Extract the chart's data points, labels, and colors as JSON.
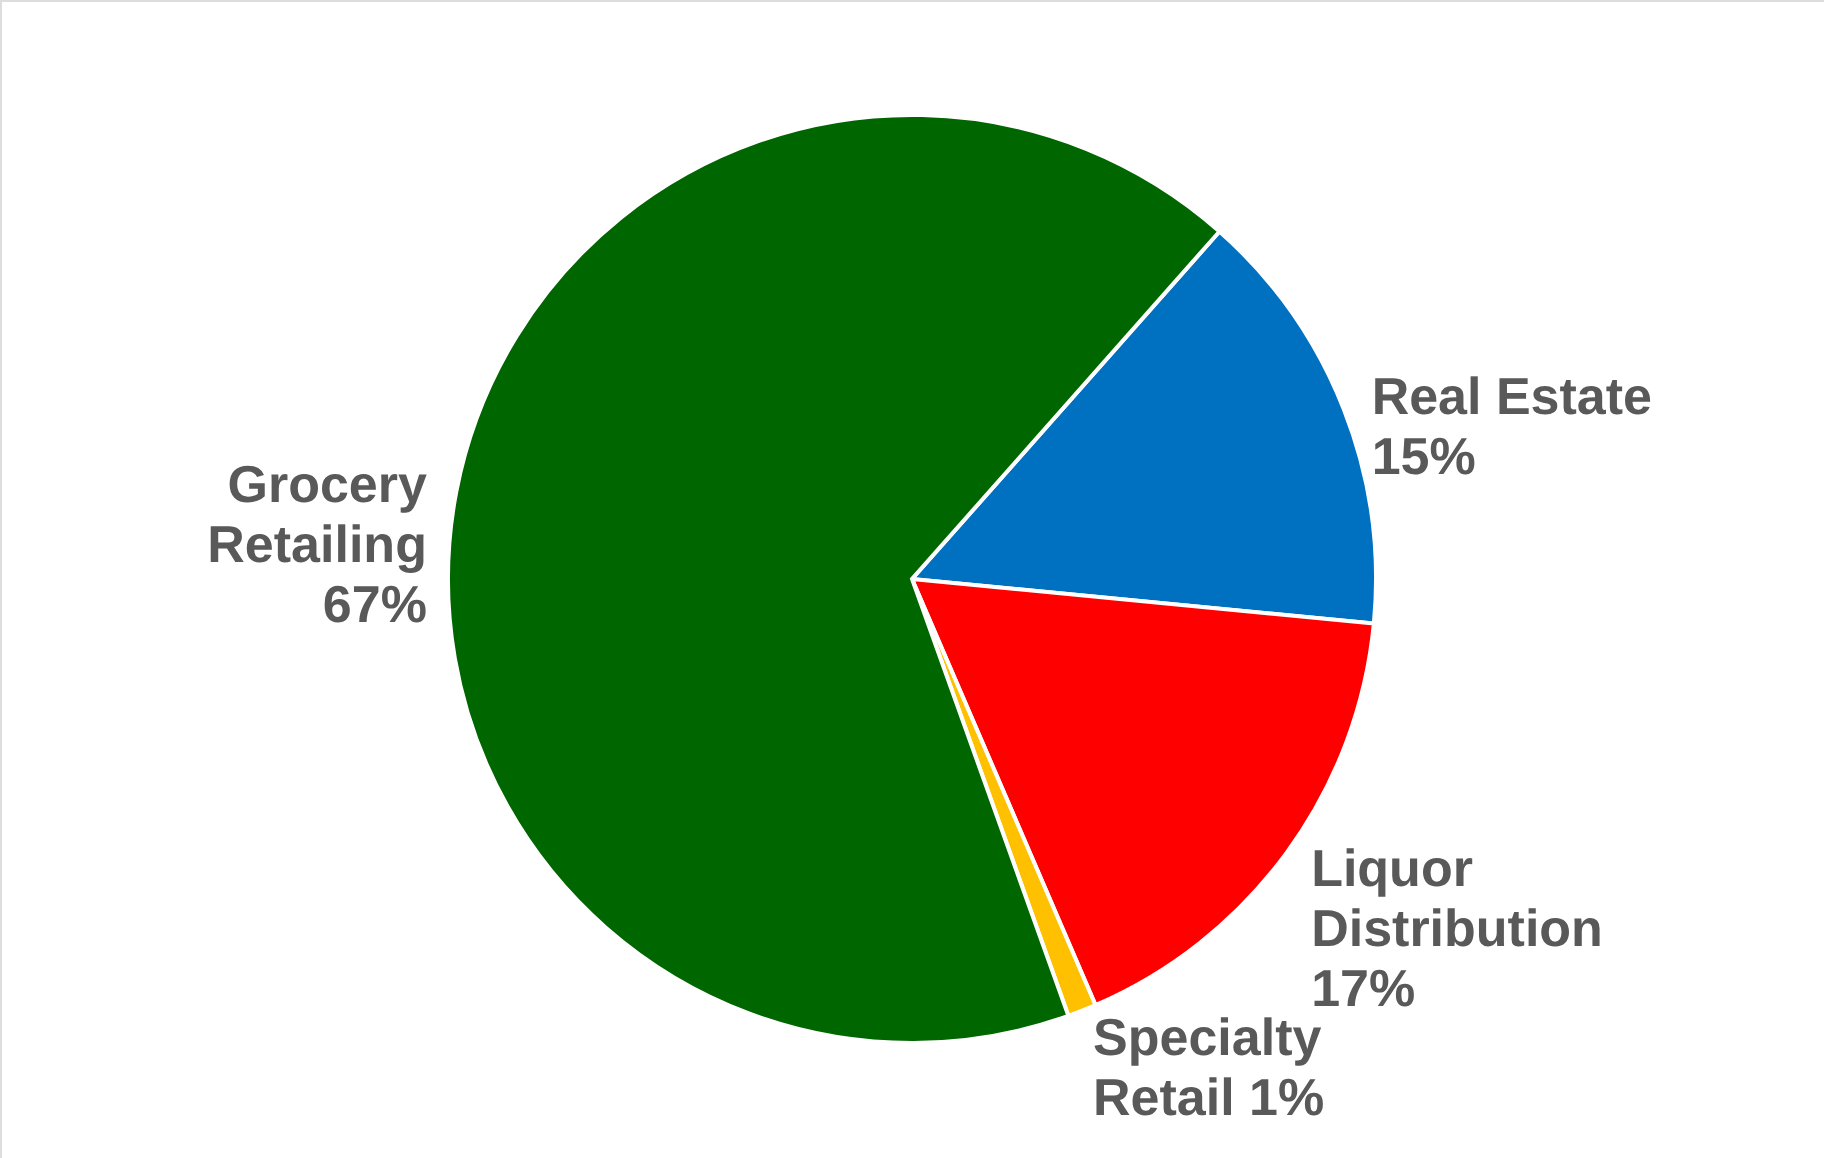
{
  "chart_data": {
    "type": "pie",
    "categories": [
      "Real Estate",
      "Liquor Distribution",
      "Specialty Retail",
      "Grocery Retailing"
    ],
    "values": [
      15,
      17,
      1,
      67
    ],
    "colors": [
      "#0070c0",
      "#ff0000",
      "#ffc000",
      "#006600"
    ],
    "value_labels": [
      "15%",
      "17%",
      "1%",
      "67%"
    ]
  }
}
